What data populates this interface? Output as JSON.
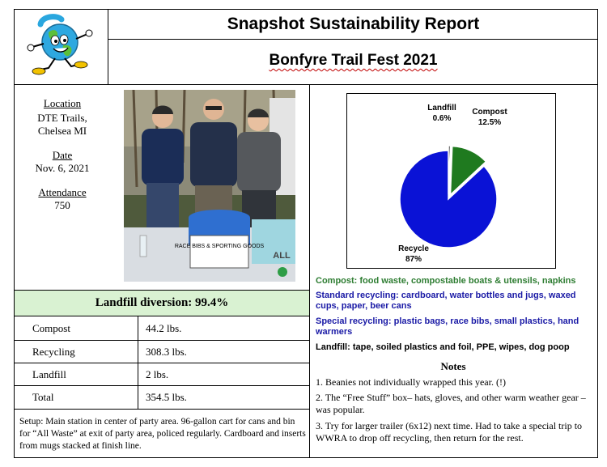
{
  "header": {
    "title": "Snapshot Sustainability Report",
    "subtitle": "Bonfyre Trail Fest 2021",
    "logo": "globe-mascot-logo"
  },
  "event_info": {
    "location_label": "Location",
    "location_value": "DTE Trails, Chelsea MI",
    "date_label": "Date",
    "date_value": "Nov. 6, 2021",
    "attendance_label": "Attendance",
    "attendance_value": "750"
  },
  "photo": {
    "sign_text": "RACE BIBS & SPORTING GOODS",
    "bin_text": "ALL"
  },
  "diversion": {
    "text": "Landfill diversion:  99.4%"
  },
  "waste_table": [
    {
      "category": "Compost",
      "amount": "44.2 lbs."
    },
    {
      "category": "Recycling",
      "amount": "308.3 lbs."
    },
    {
      "category": "Landfill",
      "amount": "2 lbs."
    },
    {
      "category": "Total",
      "amount": "354.5 lbs."
    }
  ],
  "setup_text": "Setup: Main station in center of party area. 96-gallon cart for cans and bin for “All Waste” at exit of party area, policed regularly. Cardboard and inserts from mugs stacked at finish line.",
  "chart_data": {
    "type": "pie",
    "slices": [
      {
        "label": "Recycle",
        "value": 87,
        "value_label": "87%",
        "color": "#0a12d6"
      },
      {
        "label": "Compost",
        "value": 12.5,
        "value_label": "12.5%",
        "color": "#1f7a1f"
      },
      {
        "label": "Landfill",
        "value": 0.6,
        "value_label": "0.6%",
        "color": "#000000"
      }
    ],
    "legend": "none",
    "labels_placement": "outside"
  },
  "categories": {
    "compost": {
      "text": "Compost: food waste, compostable boats & utensils, napkins",
      "color": "#2e7d32"
    },
    "standard": {
      "text": "Standard recycling: cardboard, water bottles and jugs, waxed cups, paper, beer cans",
      "color": "#1a1aa6"
    },
    "special": {
      "text": "Special recycling: plastic bags, race bibs, small plastics, hand warmers",
      "color": "#1a1aa6"
    },
    "landfill": {
      "text": "Landfill: tape, soiled plastics and foil, PPE, wipes, dog poop",
      "color": "#000000"
    }
  },
  "notes": {
    "heading": "Notes",
    "items": [
      "1.  Beanies not individually wrapped this year. (!)",
      "2.   The “Free Stuff” box– hats, gloves, and other warm weather gear – was popular.",
      "3. Try for larger trailer (6x12) next time. Had to take a special trip to WWRA to drop off recycling, then return for the rest."
    ]
  }
}
